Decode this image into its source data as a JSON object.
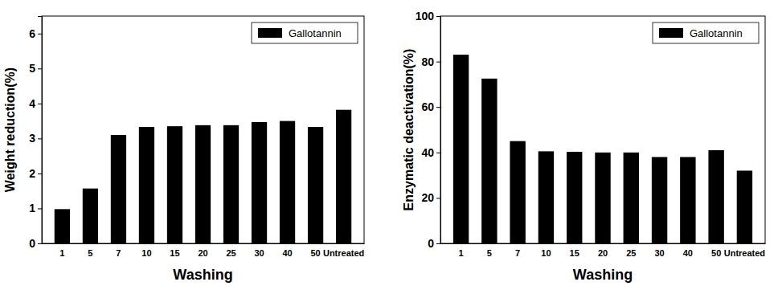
{
  "chart_data": [
    {
      "type": "bar",
      "x_label": "Washing",
      "y_label": "Weight reduction(%)",
      "categories": [
        "1",
        "5",
        "7",
        "10",
        "15",
        "20",
        "25",
        "30",
        "40",
        "50",
        "Untreated"
      ],
      "series": [
        {
          "name": "Gallotannin",
          "color": "#000000",
          "values": [
            0.98,
            1.57,
            3.1,
            3.33,
            3.35,
            3.38,
            3.38,
            3.47,
            3.5,
            3.33,
            3.82
          ]
        }
      ],
      "ylim": [
        0,
        6.5
      ],
      "yticks": [
        0,
        1,
        2,
        3,
        4,
        5,
        6
      ],
      "grid": false,
      "legend": "upper right"
    },
    {
      "type": "bar",
      "x_label": "Washing",
      "y_label": "Enzymatic deactivation(%)",
      "categories": [
        "1",
        "5",
        "7",
        "10",
        "15",
        "20",
        "25",
        "30",
        "40",
        "50",
        "Untreated"
      ],
      "series": [
        {
          "name": "Gallotannin",
          "color": "#000000",
          "values": [
            83,
            72.5,
            45,
            40.5,
            40.3,
            40,
            40,
            38,
            38,
            41,
            32
          ]
        }
      ],
      "ylim": [
        0,
        100
      ],
      "yticks": [
        0,
        20,
        40,
        60,
        80,
        100
      ],
      "grid": false,
      "legend": "upper right"
    }
  ]
}
